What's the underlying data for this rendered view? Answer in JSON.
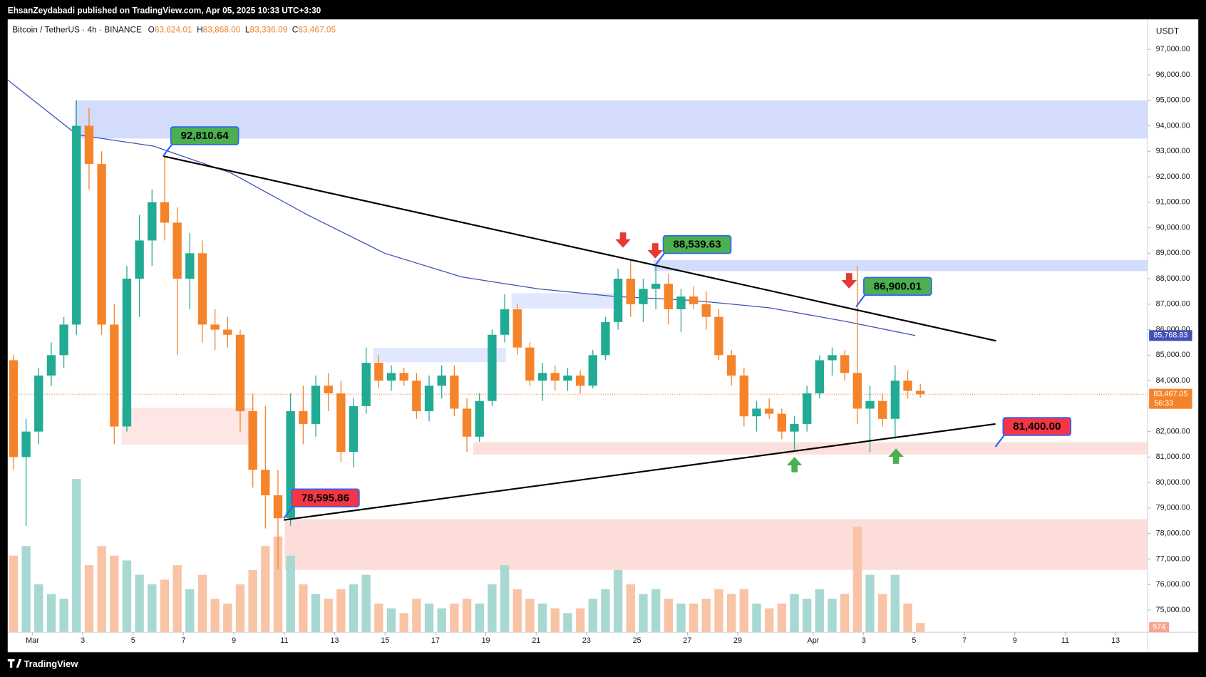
{
  "header": "EhsanZeydabadi published on TradingView.com, Apr 05, 2025 10:33 UTC+3:30",
  "footer": "TradingView",
  "chart_data": {
    "type": "candlestick",
    "symbol": "Bitcoin / TetherUS · 4h · BINANCE",
    "ohlc_legend": [
      {
        "key": "O",
        "text": "83,624.01"
      },
      {
        "key": "H",
        "text": "83,868.00"
      },
      {
        "key": "L",
        "text": "83,336.09"
      },
      {
        "key": "C",
        "text": "83,467.05"
      }
    ],
    "currency": "USDT",
    "up_color": "#22ab94",
    "down_color": "#f5832a",
    "volume_up_color": "#a8d8d2",
    "volume_down_color": "#f9c3a6",
    "xlim": [
      -0.98,
      44.27
    ],
    "ylim": [
      74125,
      98177
    ],
    "volume_ylim": [
      0,
      64000
    ],
    "yticks": [
      {
        "value": 75000,
        "label": "75,000.00"
      },
      {
        "value": 76000,
        "label": "76,000.00"
      },
      {
        "value": 77000,
        "label": "77,000.00"
      },
      {
        "value": 78000,
        "label": "78,000.00"
      },
      {
        "value": 79000,
        "label": "79,000.00"
      },
      {
        "value": 80000,
        "label": "80,000.00"
      },
      {
        "value": 81000,
        "label": "81,000.00"
      },
      {
        "value": 82000,
        "label": "82,000.00"
      },
      {
        "value": 83000,
        "label": "83,000.00"
      },
      {
        "value": 84000,
        "label": "84,000.00"
      },
      {
        "value": 85000,
        "label": "85,000.00"
      },
      {
        "value": 86000,
        "label": "86,000.00"
      },
      {
        "value": 87000,
        "label": "87,000.00"
      },
      {
        "value": 88000,
        "label": "88,000.00"
      },
      {
        "value": 89000,
        "label": "89,000.00"
      },
      {
        "value": 90000,
        "label": "90,000.00"
      },
      {
        "value": 91000,
        "label": "91,000.00"
      },
      {
        "value": 92000,
        "label": "92,000.00"
      },
      {
        "value": 93000,
        "label": "93,000.00"
      },
      {
        "value": 94000,
        "label": "94,000.00"
      },
      {
        "value": 95000,
        "label": "95,000.00"
      },
      {
        "value": 96000,
        "label": "96,000.00"
      },
      {
        "value": 97000,
        "label": "97,000.00"
      }
    ],
    "xticks": [
      {
        "value": 0,
        "label": "Mar"
      },
      {
        "value": 2,
        "label": "3"
      },
      {
        "value": 4,
        "label": "5"
      },
      {
        "value": 6,
        "label": "7"
      },
      {
        "value": 8,
        "label": "9"
      },
      {
        "value": 10,
        "label": "11"
      },
      {
        "value": 12,
        "label": "13"
      },
      {
        "value": 14,
        "label": "15"
      },
      {
        "value": 16,
        "label": "17"
      },
      {
        "value": 18,
        "label": "19"
      },
      {
        "value": 20,
        "label": "21"
      },
      {
        "value": 22,
        "label": "23"
      },
      {
        "value": 24,
        "label": "25"
      },
      {
        "value": 26,
        "label": "27"
      },
      {
        "value": 28,
        "label": "29"
      },
      {
        "value": 31,
        "label": "Apr"
      },
      {
        "value": 33,
        "label": "3"
      },
      {
        "value": 35,
        "label": "5"
      },
      {
        "value": 37,
        "label": "7"
      },
      {
        "value": 39,
        "label": "9"
      },
      {
        "value": 41,
        "label": "11"
      },
      {
        "value": 43,
        "label": "13"
      }
    ],
    "x": [
      -0.75,
      -0.25,
      0.25,
      0.75,
      1.25,
      1.75,
      2.25,
      2.75,
      3.25,
      3.75,
      4.25,
      4.75,
      5.25,
      5.75,
      6.25,
      6.75,
      7.25,
      7.75,
      8.25,
      8.75,
      9.25,
      9.75,
      10.25,
      10.75,
      11.25,
      11.75,
      12.25,
      12.75,
      13.25,
      13.75,
      14.25,
      14.75,
      15.25,
      15.75,
      16.25,
      16.75,
      17.25,
      17.75,
      18.25,
      18.75,
      19.25,
      19.75,
      20.25,
      20.75,
      21.25,
      21.75,
      22.25,
      22.75,
      23.25,
      23.75,
      24.25,
      24.75,
      25.25,
      25.75,
      26.25,
      26.75,
      27.25,
      27.75,
      28.25,
      28.75,
      29.25,
      29.75,
      30.25,
      30.75,
      31.25,
      31.75,
      32.25,
      32.75,
      33.25,
      33.75,
      34.25,
      34.75,
      35.25
    ],
    "open": [
      84800,
      81000,
      82000,
      84200,
      85000,
      86200,
      94000,
      92500,
      86200,
      82200,
      88000,
      89500,
      91000,
      90200,
      88000,
      89000,
      86200,
      86000,
      85800,
      82800,
      80500,
      79500,
      78600,
      82800,
      82300,
      83800,
      83500,
      81200,
      83000,
      84700,
      84000,
      84300,
      84000,
      82800,
      83800,
      84200,
      82900,
      81800,
      83200,
      85800,
      86800,
      85300,
      84000,
      84300,
      84000,
      84200,
      83800,
      85000,
      86300,
      88000,
      87000,
      87600,
      87800,
      86800,
      87300,
      87000,
      86500,
      85000,
      84200,
      82600,
      82900,
      82700,
      82000,
      82300,
      83500,
      84800,
      85000,
      84300,
      82900,
      83200,
      82500,
      84000,
      83600
    ],
    "high": [
      85000,
      82500,
      84500,
      85500,
      86500,
      95000,
      94700,
      93000,
      87000,
      88500,
      90500,
      91500,
      92810.64,
      90800,
      89800,
      89500,
      86800,
      86500,
      86000,
      83500,
      83000,
      80500,
      83500,
      83800,
      84200,
      84300,
      84000,
      83300,
      85300,
      85000,
      84600,
      84500,
      84300,
      84200,
      84600,
      84600,
      83300,
      83500,
      86000,
      87400,
      87000,
      85500,
      84700,
      84600,
      84500,
      84400,
      85200,
      86500,
      88400,
      88700,
      88000,
      88539.63,
      88200,
      87600,
      87700,
      87500,
      86800,
      85200,
      84500,
      83200,
      83300,
      82900,
      82600,
      83800,
      85000,
      85300,
      85200,
      88500,
      83800,
      83500,
      84600,
      84400,
      83868
    ],
    "low": [
      80500,
      78300,
      81500,
      83800,
      84500,
      85800,
      91500,
      85800,
      81500,
      82000,
      86500,
      88500,
      89500,
      85000,
      86800,
      85500,
      85200,
      85300,
      82000,
      79800,
      78200,
      76600,
      78300,
      81500,
      81800,
      82800,
      80800,
      80600,
      82700,
      83700,
      83600,
      83800,
      82500,
      82400,
      83300,
      82600,
      81200,
      81600,
      83000,
      85500,
      85000,
      83800,
      83200,
      83600,
      83600,
      83500,
      83700,
      84800,
      86000,
      86500,
      86300,
      86800,
      86200,
      85900,
      86800,
      86000,
      84800,
      83800,
      82200,
      82000,
      82500,
      81700,
      81300,
      82000,
      83300,
      84200,
      84000,
      82300,
      81200,
      82200,
      81700,
      83300,
      83336.09
    ],
    "close": [
      81000,
      82000,
      84200,
      85000,
      86200,
      94000,
      92500,
      86200,
      82200,
      88000,
      89500,
      91000,
      90200,
      88000,
      89000,
      86200,
      86000,
      85800,
      82800,
      80500,
      79500,
      78600,
      82800,
      82300,
      83800,
      83500,
      81200,
      83000,
      84700,
      84000,
      84300,
      84000,
      82800,
      83800,
      84200,
      82900,
      81800,
      83200,
      85800,
      86800,
      85300,
      84000,
      84300,
      84000,
      84200,
      83800,
      85000,
      86300,
      88000,
      87000,
      87600,
      87800,
      86800,
      87300,
      87000,
      86500,
      85000,
      84200,
      82600,
      82900,
      82700,
      82000,
      82300,
      83500,
      84800,
      85000,
      84300,
      82900,
      83200,
      82500,
      84000,
      83600,
      83467.05
    ],
    "volume": [
      8000,
      9000,
      5000,
      4000,
      3500,
      16000,
      7000,
      9000,
      8000,
      7500,
      6000,
      5000,
      5500,
      7000,
      4500,
      6000,
      3500,
      3000,
      5000,
      6500,
      9000,
      10000,
      8000,
      5000,
      4000,
      3500,
      4500,
      5000,
      6000,
      3000,
      2500,
      2000,
      3500,
      3000,
      2500,
      3000,
      3500,
      3000,
      5000,
      7000,
      4500,
      3500,
      3000,
      2500,
      2000,
      2500,
      3500,
      4500,
      6500,
      5000,
      4000,
      4500,
      3500,
      3000,
      3000,
      3500,
      4500,
      4000,
      4500,
      3000,
      2500,
      3000,
      4000,
      3500,
      4500,
      3500,
      4000,
      11000,
      6000,
      4000,
      6000,
      3000,
      974
    ],
    "ma": {
      "color": "#3f51b5",
      "x": [
        -0.98,
        1.77,
        4.82,
        7.88,
        10.93,
        13.98,
        17.04,
        20.09,
        23.15,
        26.2,
        29.25,
        32.3,
        35.05
      ],
      "values": [
        95800,
        93650,
        93200,
        92150,
        90500,
        89000,
        88070,
        87600,
        87300,
        87150,
        86860,
        86320,
        85768.83
      ],
      "last_label": "85,768.83"
    },
    "last_price": {
      "value": 83467.05,
      "label": "83,467.05",
      "countdown": "56:33",
      "color": "#f5832a"
    },
    "zones": [
      {
        "x": [
          1.68,
          44.27
        ],
        "y": [
          93500,
          95000
        ],
        "color": "rgba(70,110,240,0.24)"
      },
      {
        "x": [
          24.67,
          44.27
        ],
        "y": [
          88300,
          88730
        ],
        "color": "rgba(70,110,240,0.24)"
      },
      {
        "x": [
          19.02,
          23.15
        ],
        "y": [
          86830,
          87430
        ],
        "color": "rgba(70,110,240,0.16)"
      },
      {
        "x": [
          13.53,
          18.8
        ],
        "y": [
          84720,
          85290
        ],
        "color": "rgba(70,110,240,0.16)"
      },
      {
        "x": [
          3.54,
          8.79
        ],
        "y": [
          81490,
          82940
        ],
        "color": "rgba(242,100,80,0.16)"
      },
      {
        "x": [
          17.5,
          44.27
        ],
        "y": [
          81100,
          81580
        ],
        "color": "rgba(242,100,80,0.2)"
      },
      {
        "x": [
          10.02,
          44.27
        ],
        "y": [
          76570,
          78560
        ],
        "color": "rgba(242,100,80,0.22)"
      }
    ],
    "trendlines": [
      {
        "x": [
          5.19,
          38.26
        ],
        "y": [
          92810.64,
          85560
        ]
      },
      {
        "x": [
          9.98,
          38.23
        ],
        "y": [
          78530,
          82300
        ]
      }
    ],
    "annotations": [
      {
        "label": "92,810.64",
        "value": 92810.64,
        "x": 5.19,
        "color": "#4caf50"
      },
      {
        "label": "88,539.63",
        "value": 88539.63,
        "x": 24.74,
        "color": "#4caf50"
      },
      {
        "label": "86,900.01",
        "value": 86900.01,
        "x": 32.7,
        "color": "#4caf50"
      },
      {
        "label": "78,595.86",
        "value": 78595.86,
        "x": 9.98,
        "color": "#f23645"
      },
      {
        "label": "81,400.00",
        "value": 81400,
        "x": 38.23,
        "color": "#f23645"
      }
    ]
  }
}
